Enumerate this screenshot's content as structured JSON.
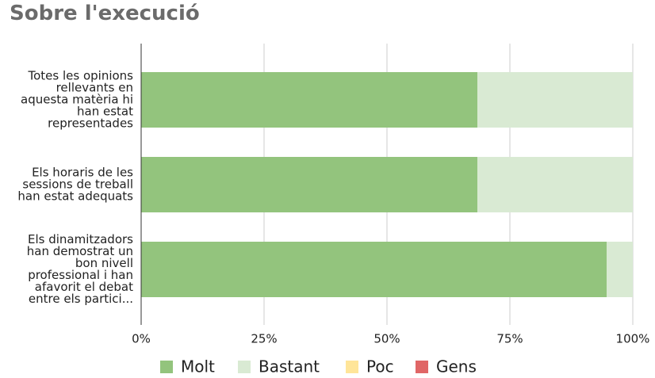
{
  "chart_data": {
    "type": "stacked_bar_horizontal",
    "title": "Sobre l'execució",
    "categories": [
      "Totes les opinions rellevants en aquesta matèria hi han estat representades",
      "Els horaris de les sessions de treball han estat adequats",
      "Els dinamitzadors han demostrat un bon nivell professional i han afavorit el debat entre els partici..."
    ],
    "series": [
      {
        "name": "Molt",
        "color": "#93c47d",
        "values": [
          68.4,
          68.4,
          94.7
        ]
      },
      {
        "name": "Bastant",
        "color": "#d9ead3",
        "values": [
          31.6,
          31.6,
          5.3
        ]
      },
      {
        "name": "Poc",
        "color": "#ffe599",
        "values": [
          0,
          0,
          0
        ]
      },
      {
        "name": "Gens",
        "color": "#e06666",
        "values": [
          0,
          0,
          0
        ]
      }
    ],
    "xlim": [
      0,
      100
    ],
    "xticks": [
      {
        "value": 0,
        "label": "0%"
      },
      {
        "value": 25,
        "label": "25%"
      },
      {
        "value": 50,
        "label": "50%"
      },
      {
        "value": 75,
        "label": "75%"
      },
      {
        "value": 100,
        "label": "100%"
      }
    ],
    "grid": true,
    "legend": "bottom"
  }
}
